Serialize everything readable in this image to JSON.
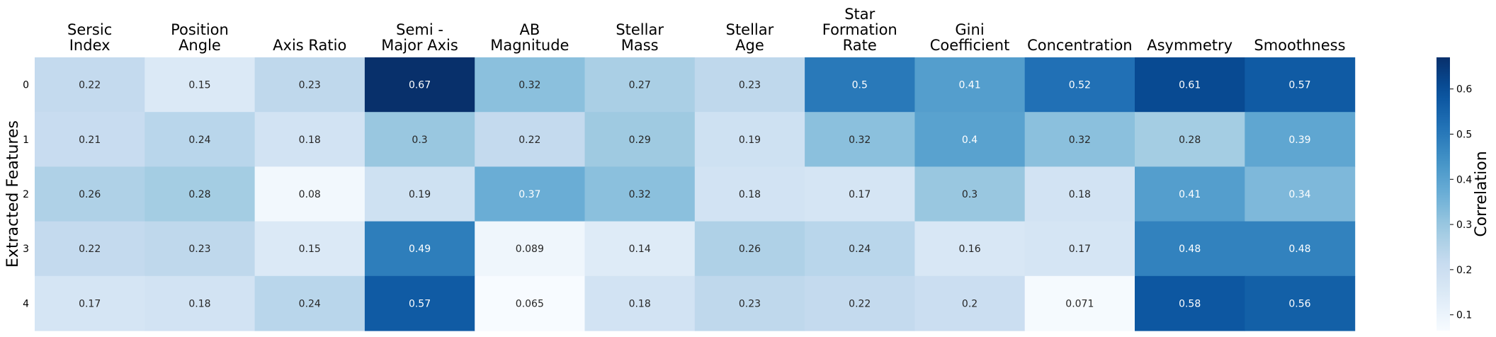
{
  "chart_data": {
    "type": "heatmap",
    "columns": [
      [
        "Sersic",
        "Index"
      ],
      [
        "Position",
        "Angle"
      ],
      [
        "Axis Ratio"
      ],
      [
        "Semi -",
        "Major Axis"
      ],
      [
        "AB",
        "Magnitude"
      ],
      [
        "Stellar",
        "Mass"
      ],
      [
        "Stellar",
        "Age"
      ],
      [
        "Star",
        "Formation",
        "Rate"
      ],
      [
        "Gini",
        "Coefficient"
      ],
      [
        "Concentration"
      ],
      [
        "Asymmetry"
      ],
      [
        "Smoothness"
      ]
    ],
    "rows": [
      "0",
      "1",
      "2",
      "3",
      "4"
    ],
    "values": [
      [
        0.22,
        0.15,
        0.23,
        0.67,
        0.32,
        0.27,
        0.23,
        0.5,
        0.41,
        0.52,
        0.61,
        0.57
      ],
      [
        0.21,
        0.24,
        0.18,
        0.3,
        0.22,
        0.29,
        0.19,
        0.32,
        0.4,
        0.32,
        0.28,
        0.39
      ],
      [
        0.26,
        0.28,
        0.08,
        0.19,
        0.37,
        0.32,
        0.18,
        0.17,
        0.3,
        0.18,
        0.41,
        0.34
      ],
      [
        0.22,
        0.23,
        0.15,
        0.49,
        0.089,
        0.14,
        0.26,
        0.24,
        0.16,
        0.17,
        0.48,
        0.48
      ],
      [
        0.17,
        0.18,
        0.24,
        0.57,
        0.065,
        0.18,
        0.23,
        0.22,
        0.2,
        0.071,
        0.58,
        0.56
      ]
    ],
    "ylabel": "Extracted Features",
    "colorbar": {
      "label": "Correlation",
      "range": [
        0.065,
        0.67
      ],
      "ticks": [
        "0.1",
        "0.2",
        "0.3",
        "0.4",
        "0.5",
        "0.6"
      ],
      "colormap": "Blues"
    }
  }
}
